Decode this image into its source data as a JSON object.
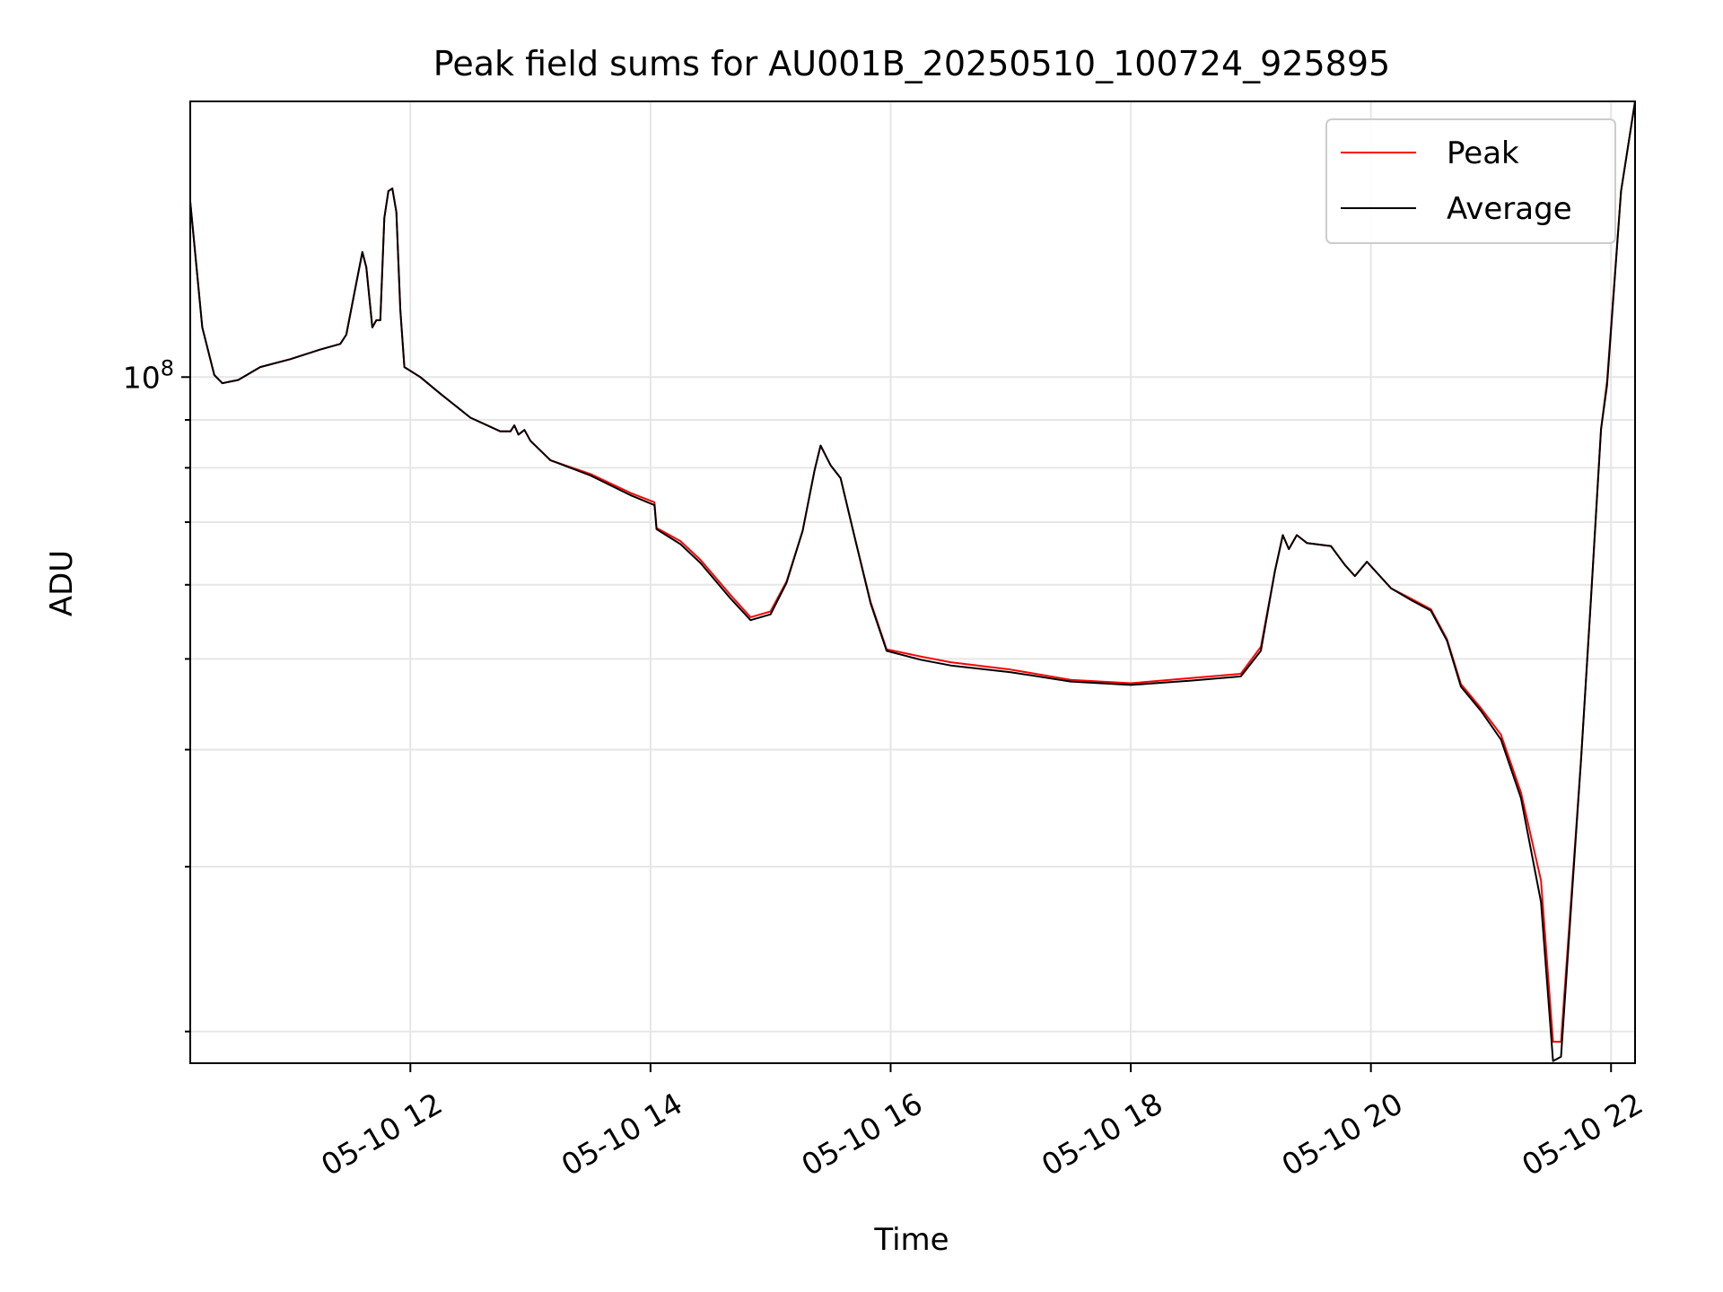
{
  "chart_data": {
    "type": "line",
    "title": "Peak field sums for AU001B_20250510_100724_925895",
    "xlabel": "Time",
    "ylabel": "ADU",
    "yscale": "log",
    "grid": true,
    "legend_position": "top-right",
    "xlim": [
      "05-10 10:10",
      "05-10 22:12"
    ],
    "ylim": [
      18500000,
      197000000
    ],
    "x_ticks": [
      "05-10 12",
      "05-10 14",
      "05-10 16",
      "05-10 18",
      "05-10 20",
      "05-10 22"
    ],
    "y_tick_label": {
      "mantissa": "10",
      "exponent": "8"
    },
    "colors": {
      "peak": "#ff0000",
      "average": "#000000",
      "grid": "#e6e6e6"
    },
    "series": [
      {
        "name": "Peak",
        "color": "#ff0000",
        "points": [
          [
            "05-10 10:10",
            154000000
          ],
          [
            "05-10 10:16",
            113000000
          ],
          [
            "05-10 10:22",
            100500000
          ],
          [
            "05-10 10:26",
            98500000
          ],
          [
            "05-10 10:34",
            99300000
          ],
          [
            "05-10 10:45",
            102500000
          ],
          [
            "05-10 11:00",
            104500000
          ],
          [
            "05-10 11:15",
            107000000
          ],
          [
            "05-10 11:25",
            108500000
          ],
          [
            "05-10 11:28",
            111000000
          ],
          [
            "05-10 11:32",
            123000000
          ],
          [
            "05-10 11:36",
            136000000
          ],
          [
            "05-10 11:38",
            131000000
          ],
          [
            "05-10 11:41",
            113000000
          ],
          [
            "05-10 11:43",
            115000000
          ],
          [
            "05-10 11:45",
            115000000
          ],
          [
            "05-10 11:47",
            148000000
          ],
          [
            "05-10 11:49",
            158000000
          ],
          [
            "05-10 11:51",
            159000000
          ],
          [
            "05-10 11:53",
            150000000
          ],
          [
            "05-10 11:55",
            118000000
          ],
          [
            "05-10 11:57",
            102500000
          ],
          [
            "05-10 12:05",
            100000000
          ],
          [
            "05-10 12:15",
            96000000
          ],
          [
            "05-10 12:30",
            90500000
          ],
          [
            "05-10 12:45",
            87500000
          ],
          [
            "05-10 12:50",
            87500000
          ],
          [
            "05-10 12:52",
            88800000
          ],
          [
            "05-10 12:54",
            86800000
          ],
          [
            "05-10 12:57",
            87800000
          ],
          [
            "05-10 13:00",
            85500000
          ],
          [
            "05-10 13:10",
            81500000
          ],
          [
            "05-10 13:30",
            78800000
          ],
          [
            "05-10 13:50",
            75200000
          ],
          [
            "05-10 14:02",
            73500000
          ],
          [
            "05-10 14:03",
            69000000
          ],
          [
            "05-10 14:15",
            66800000
          ],
          [
            "05-10 14:25",
            63800000
          ],
          [
            "05-10 14:40",
            58500000
          ],
          [
            "05-10 14:50",
            55400000
          ],
          [
            "05-10 15:00",
            56200000
          ],
          [
            "05-10 15:08",
            60500000
          ],
          [
            "05-10 15:16",
            68500000
          ],
          [
            "05-10 15:22",
            79500000
          ],
          [
            "05-10 15:25",
            84500000
          ],
          [
            "05-10 15:30",
            80500000
          ],
          [
            "05-10 15:35",
            78000000
          ],
          [
            "05-10 15:42",
            67500000
          ],
          [
            "05-10 15:50",
            57500000
          ],
          [
            "05-10 15:58",
            51200000
          ],
          [
            "05-10 16:15",
            50300000
          ],
          [
            "05-10 16:30",
            49600000
          ],
          [
            "05-10 17:00",
            48700000
          ],
          [
            "05-10 17:30",
            47500000
          ],
          [
            "05-10 18:00",
            47100000
          ],
          [
            "05-10 18:30",
            47700000
          ],
          [
            "05-10 18:55",
            48200000
          ],
          [
            "05-10 19:05",
            51500000
          ],
          [
            "05-10 19:12",
            62000000
          ],
          [
            "05-10 19:16",
            67800000
          ],
          [
            "05-10 19:19",
            65500000
          ],
          [
            "05-10 19:23",
            67800000
          ],
          [
            "05-10 19:28",
            66500000
          ],
          [
            "05-10 19:40",
            66000000
          ],
          [
            "05-10 19:47",
            63000000
          ],
          [
            "05-10 19:52",
            61300000
          ],
          [
            "05-10 19:58",
            63500000
          ],
          [
            "05-10 20:10",
            59500000
          ],
          [
            "05-10 20:20",
            58000000
          ],
          [
            "05-10 20:30",
            56500000
          ],
          [
            "05-10 20:38",
            52500000
          ],
          [
            "05-10 20:45",
            47000000
          ],
          [
            "05-10 20:55",
            44300000
          ],
          [
            "05-10 21:05",
            41500000
          ],
          [
            "05-10 21:15",
            36000000
          ],
          [
            "05-10 21:25",
            29000000
          ],
          [
            "05-10 21:31",
            19500000
          ],
          [
            "05-10 21:35",
            19500000
          ],
          [
            "05-10 21:45",
            39000000
          ],
          [
            "05-10 21:50",
            58000000
          ],
          [
            "05-10 21:55",
            88000000
          ],
          [
            "05-10 21:58",
            99000000
          ],
          [
            "05-10 22:05",
            158000000
          ],
          [
            "05-10 22:12",
            197000000
          ]
        ]
      },
      {
        "name": "Average",
        "color": "#000000",
        "points": [
          [
            "05-10 10:10",
            154000000
          ],
          [
            "05-10 10:16",
            113000000
          ],
          [
            "05-10 10:22",
            100500000
          ],
          [
            "05-10 10:26",
            98500000
          ],
          [
            "05-10 10:34",
            99300000
          ],
          [
            "05-10 10:45",
            102500000
          ],
          [
            "05-10 11:00",
            104500000
          ],
          [
            "05-10 11:15",
            107000000
          ],
          [
            "05-10 11:25",
            108500000
          ],
          [
            "05-10 11:28",
            111000000
          ],
          [
            "05-10 11:32",
            123000000
          ],
          [
            "05-10 11:36",
            136000000
          ],
          [
            "05-10 11:38",
            131000000
          ],
          [
            "05-10 11:41",
            113000000
          ],
          [
            "05-10 11:43",
            115000000
          ],
          [
            "05-10 11:45",
            115000000
          ],
          [
            "05-10 11:47",
            148000000
          ],
          [
            "05-10 11:49",
            158000000
          ],
          [
            "05-10 11:51",
            159000000
          ],
          [
            "05-10 11:53",
            150000000
          ],
          [
            "05-10 11:55",
            118000000
          ],
          [
            "05-10 11:57",
            102500000
          ],
          [
            "05-10 12:05",
            100000000
          ],
          [
            "05-10 12:15",
            96000000
          ],
          [
            "05-10 12:30",
            90500000
          ],
          [
            "05-10 12:45",
            87500000
          ],
          [
            "05-10 12:50",
            87500000
          ],
          [
            "05-10 12:52",
            88800000
          ],
          [
            "05-10 12:54",
            86800000
          ],
          [
            "05-10 12:57",
            87800000
          ],
          [
            "05-10 13:00",
            85500000
          ],
          [
            "05-10 13:10",
            81500000
          ],
          [
            "05-10 13:30",
            78500000
          ],
          [
            "05-10 13:50",
            74800000
          ],
          [
            "05-10 14:02",
            73000000
          ],
          [
            "05-10 14:03",
            68800000
          ],
          [
            "05-10 14:15",
            66300000
          ],
          [
            "05-10 14:25",
            63300000
          ],
          [
            "05-10 14:40",
            58000000
          ],
          [
            "05-10 14:50",
            55000000
          ],
          [
            "05-10 15:00",
            55800000
          ],
          [
            "05-10 15:08",
            60300000
          ],
          [
            "05-10 15:16",
            68500000
          ],
          [
            "05-10 15:22",
            79500000
          ],
          [
            "05-10 15:25",
            84500000
          ],
          [
            "05-10 15:30",
            80500000
          ],
          [
            "05-10 15:35",
            78000000
          ],
          [
            "05-10 15:42",
            67500000
          ],
          [
            "05-10 15:50",
            57300000
          ],
          [
            "05-10 15:58",
            51000000
          ],
          [
            "05-10 16:15",
            49900000
          ],
          [
            "05-10 16:30",
            49200000
          ],
          [
            "05-10 17:00",
            48400000
          ],
          [
            "05-10 17:30",
            47300000
          ],
          [
            "05-10 18:00",
            46900000
          ],
          [
            "05-10 18:30",
            47400000
          ],
          [
            "05-10 18:55",
            47900000
          ],
          [
            "05-10 19:05",
            51000000
          ],
          [
            "05-10 19:12",
            62000000
          ],
          [
            "05-10 19:16",
            67800000
          ],
          [
            "05-10 19:19",
            65500000
          ],
          [
            "05-10 19:23",
            67800000
          ],
          [
            "05-10 19:28",
            66500000
          ],
          [
            "05-10 19:40",
            66000000
          ],
          [
            "05-10 19:47",
            63000000
          ],
          [
            "05-10 19:52",
            61300000
          ],
          [
            "05-10 19:58",
            63500000
          ],
          [
            "05-10 20:10",
            59500000
          ],
          [
            "05-10 20:20",
            57800000
          ],
          [
            "05-10 20:30",
            56300000
          ],
          [
            "05-10 20:38",
            52300000
          ],
          [
            "05-10 20:45",
            46700000
          ],
          [
            "05-10 20:55",
            44000000
          ],
          [
            "05-10 21:05",
            41000000
          ],
          [
            "05-10 21:15",
            35500000
          ],
          [
            "05-10 21:25",
            27500000
          ],
          [
            "05-10 21:31",
            18600000
          ],
          [
            "05-10 21:35",
            18800000
          ],
          [
            "05-10 21:45",
            39000000
          ],
          [
            "05-10 21:50",
            58000000
          ],
          [
            "05-10 21:55",
            88000000
          ],
          [
            "05-10 21:58",
            98000000
          ],
          [
            "05-10 22:05",
            158000000
          ],
          [
            "05-10 22:12",
            197000000
          ]
        ]
      }
    ]
  }
}
